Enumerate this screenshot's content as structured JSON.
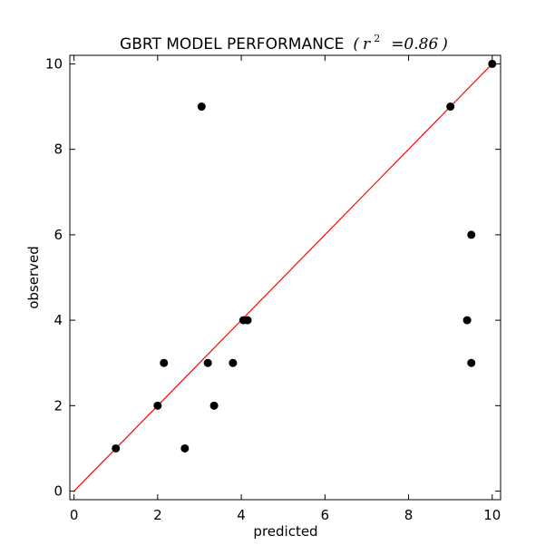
{
  "chart_data": {
    "type": "scatter",
    "title": "GBRT MODEL PERFORMANCE",
    "title_math": {
      "prefix": "(",
      "var": "r",
      "sup": "2",
      "eq": "=0.86",
      "suffix": ")"
    },
    "xlabel": "predicted",
    "ylabel": "observed",
    "xlim": [
      -0.1,
      10.2
    ],
    "ylim": [
      -0.2,
      10.2
    ],
    "xticks": [
      "0",
      "2",
      "4",
      "6",
      "8",
      "10"
    ],
    "yticks": [
      "0",
      "2",
      "4",
      "6",
      "8",
      "10"
    ],
    "grid": false,
    "marker_color": "#000000",
    "line_color": "#ff0000",
    "reference_line": {
      "x": [
        0,
        10
      ],
      "y": [
        0,
        10
      ]
    },
    "points": [
      {
        "x": 1.0,
        "y": 1
      },
      {
        "x": 2.0,
        "y": 2
      },
      {
        "x": 2.15,
        "y": 3
      },
      {
        "x": 2.65,
        "y": 1
      },
      {
        "x": 3.05,
        "y": 9
      },
      {
        "x": 3.2,
        "y": 3
      },
      {
        "x": 3.35,
        "y": 2
      },
      {
        "x": 3.8,
        "y": 3
      },
      {
        "x": 4.05,
        "y": 4
      },
      {
        "x": 4.15,
        "y": 4
      },
      {
        "x": 9.0,
        "y": 9
      },
      {
        "x": 9.4,
        "y": 4
      },
      {
        "x": 9.5,
        "y": 6
      },
      {
        "x": 9.5,
        "y": 3
      },
      {
        "x": 10.0,
        "y": 10
      }
    ]
  }
}
